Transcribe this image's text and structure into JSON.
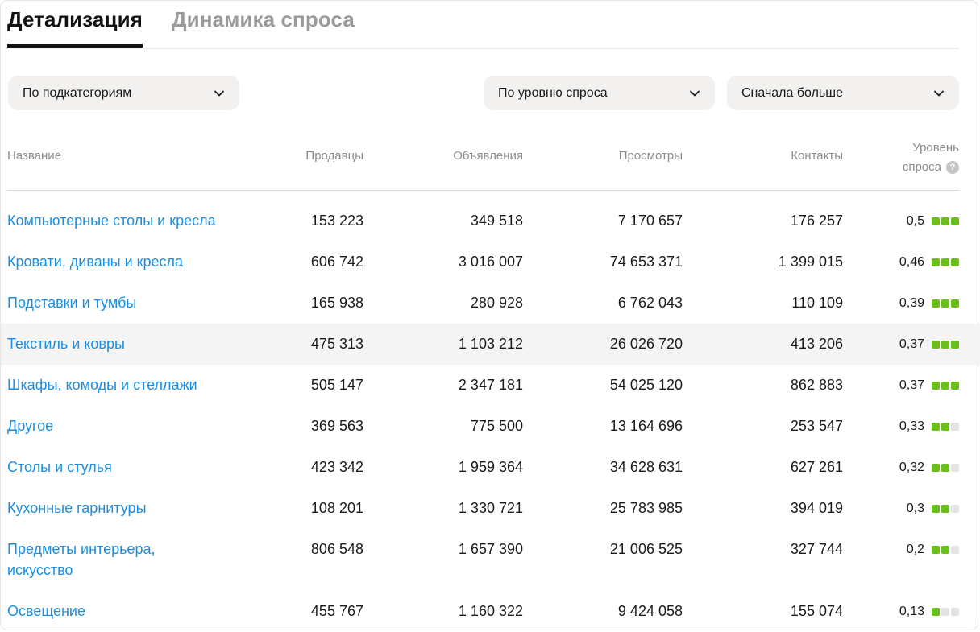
{
  "tabs": [
    {
      "label": "Детализация",
      "active": true
    },
    {
      "label": "Динамика спроса",
      "active": false
    }
  ],
  "filters": {
    "group_by": "По подкатегориям",
    "sort_field": "По уровню спроса",
    "sort_order": "Сначала больше"
  },
  "table": {
    "columns": {
      "name": "Название",
      "sellers": "Продавцы",
      "ads": "Объявления",
      "views": "Просмотры",
      "contacts": "Контакты",
      "level_line1": "Уровень",
      "level_line2": "спроса"
    },
    "rows": [
      {
        "name": "Компьютерные столы и кресла",
        "sellers": "153 223",
        "ads": "349 518",
        "views": "7 170 657",
        "contacts": "176 257",
        "level": "0,5",
        "level_bars": 3
      },
      {
        "name": "Кровати, диваны и кресла",
        "sellers": "606 742",
        "ads": "3 016 007",
        "views": "74 653 371",
        "contacts": "1 399 015",
        "level": "0,46",
        "level_bars": 3
      },
      {
        "name": "Подставки и тумбы",
        "sellers": "165 938",
        "ads": "280 928",
        "views": "6 762 043",
        "contacts": "110 109",
        "level": "0,39",
        "level_bars": 3
      },
      {
        "name": "Текстиль и ковры",
        "sellers": "475 313",
        "ads": "1 103 212",
        "views": "26 026 720",
        "contacts": "413 206",
        "level": "0,37",
        "level_bars": 3
      },
      {
        "name": "Шкафы, комоды и стеллажи",
        "sellers": "505 147",
        "ads": "2 347 181",
        "views": "54 025 120",
        "contacts": "862 883",
        "level": "0,37",
        "level_bars": 3
      },
      {
        "name": "Другое",
        "sellers": "369 563",
        "ads": "775 500",
        "views": "13 164 696",
        "contacts": "253 547",
        "level": "0,33",
        "level_bars": 2
      },
      {
        "name": "Столы и стулья",
        "sellers": "423 342",
        "ads": "1 959 364",
        "views": "34 628 631",
        "contacts": "627 261",
        "level": "0,32",
        "level_bars": 2
      },
      {
        "name": "Кухонные гарнитуры",
        "sellers": "108 201",
        "ads": "1 330 721",
        "views": "25 783 985",
        "contacts": "394 019",
        "level": "0,3",
        "level_bars": 2
      },
      {
        "name": "Предметы интерьера, искусство",
        "sellers": "806 548",
        "ads": "1 657 390",
        "views": "21 006 525",
        "contacts": "327 744",
        "level": "0,2",
        "level_bars": 2
      },
      {
        "name": "Освещение",
        "sellers": "455 767",
        "ads": "1 160 322",
        "views": "9 424 058",
        "contacts": "155 074",
        "level": "0,13",
        "level_bars": 1
      }
    ]
  },
  "colors": {
    "link": "#1a8fe3",
    "level_on": "#6bbf1a",
    "level_off": "#e3e3e3",
    "row_highlight": "#f4f4f4"
  },
  "icons": {
    "dropdown": "chevron-down-icon",
    "help": "question-circle-icon"
  }
}
